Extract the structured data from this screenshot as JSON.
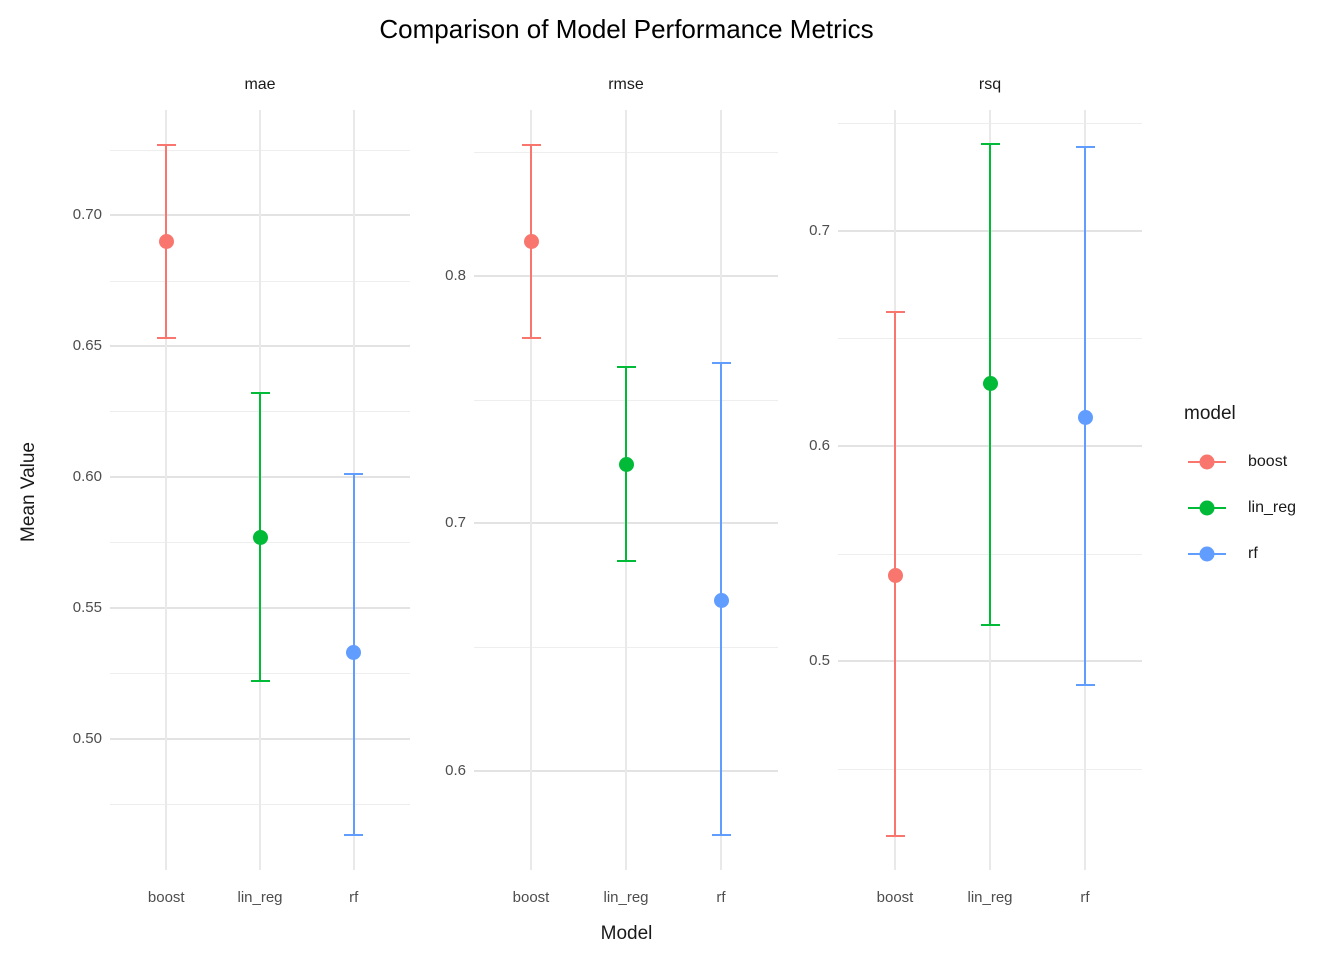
{
  "title": "Comparison of Model Performance Metrics",
  "axes": {
    "x_title": "Model",
    "y_title": "Mean Value"
  },
  "legend": {
    "title": "model",
    "items": [
      {
        "label": "boost",
        "color": "#F8766D"
      },
      {
        "label": "lin_reg",
        "color": "#00BA38"
      },
      {
        "label": "rf",
        "color": "#619CFF"
      }
    ]
  },
  "colors": {
    "boost": "#F8766D",
    "lin_reg": "#00BA38",
    "rf": "#619CFF",
    "gridline_major": "#e3e3e3",
    "gridline_minor": "#eeeeee",
    "tick_text": "#4d4d4d"
  },
  "chart_data": {
    "type": "scatter",
    "subtype": "point-with-errorbar",
    "title": "Comparison of Model Performance Metrics",
    "xlabel": "Model",
    "ylabel": "Mean Value",
    "legend_title": "model",
    "legend_position": "right",
    "grid": "on",
    "categories": [
      "boost",
      "lin_reg",
      "rf"
    ],
    "series_colors": {
      "boost": "#F8766D",
      "lin_reg": "#00BA38",
      "rf": "#619CFF"
    },
    "facets": [
      {
        "label": "mae",
        "y_domain": [
          0.4498,
          0.7402
        ],
        "y_ticks": [
          {
            "label": "0.70",
            "value": 0.7
          },
          {
            "label": "0.65",
            "value": 0.65
          },
          {
            "label": "0.60",
            "value": 0.6
          },
          {
            "label": "0.55",
            "value": 0.55
          },
          {
            "label": "0.50",
            "value": 0.5
          }
        ],
        "y_minor_ticks": [
          0.725,
          0.675,
          0.625,
          0.575,
          0.525,
          0.475
        ],
        "points": [
          {
            "model": "boost",
            "mean": 0.69,
            "lower": 0.653,
            "upper": 0.727
          },
          {
            "model": "lin_reg",
            "mean": 0.577,
            "lower": 0.522,
            "upper": 0.632
          },
          {
            "model": "rf",
            "mean": 0.533,
            "lower": 0.463,
            "upper": 0.601
          }
        ]
      },
      {
        "label": "rmse",
        "y_domain": [
          0.56,
          0.867
        ],
        "y_ticks": [
          {
            "label": "0.8",
            "value": 0.8
          },
          {
            "label": "0.7",
            "value": 0.7
          },
          {
            "label": "0.6",
            "value": 0.6
          }
        ],
        "y_minor_ticks": [
          0.85,
          0.75,
          0.65
        ],
        "points": [
          {
            "model": "boost",
            "mean": 0.814,
            "lower": 0.775,
            "upper": 0.853
          },
          {
            "model": "lin_reg",
            "mean": 0.724,
            "lower": 0.685,
            "upper": 0.763
          },
          {
            "model": "rf",
            "mean": 0.669,
            "lower": 0.574,
            "upper": 0.765
          }
        ]
      },
      {
        "label": "rsq",
        "y_domain": [
          0.403,
          0.756
        ],
        "y_ticks": [
          {
            "label": "0.7",
            "value": 0.7
          },
          {
            "label": "0.6",
            "value": 0.6
          },
          {
            "label": "0.5",
            "value": 0.5
          }
        ],
        "y_minor_ticks": [
          0.75,
          0.65,
          0.55,
          0.45
        ],
        "points": [
          {
            "model": "boost",
            "mean": 0.54,
            "lower": 0.419,
            "upper": 0.662
          },
          {
            "model": "lin_reg",
            "mean": 0.629,
            "lower": 0.517,
            "upper": 0.74
          },
          {
            "model": "rf",
            "mean": 0.613,
            "lower": 0.489,
            "upper": 0.739
          }
        ]
      }
    ]
  }
}
